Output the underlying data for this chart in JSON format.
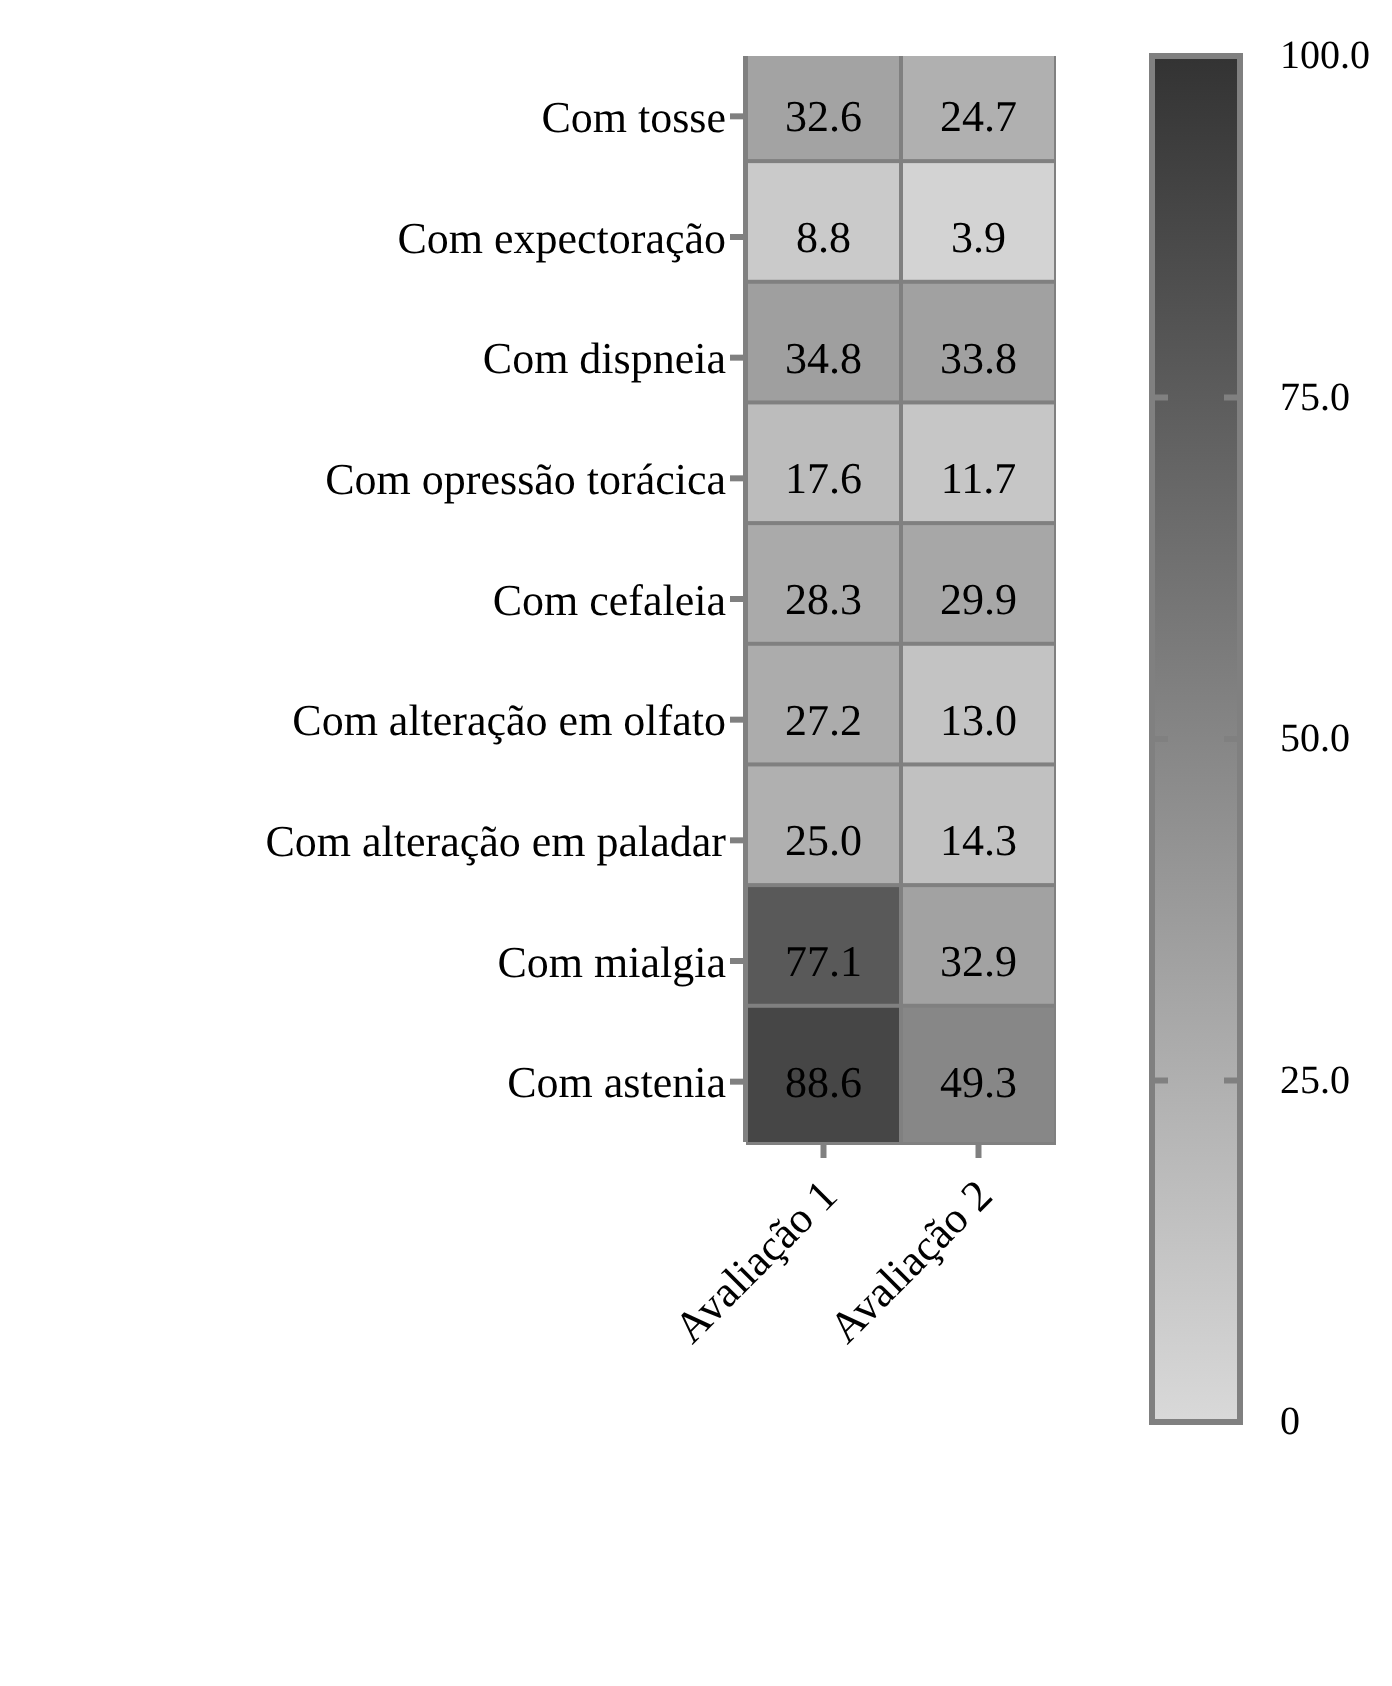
{
  "chart_data": {
    "type": "heatmap",
    "categories": [
      "Avaliação 1",
      "Avaliação 2"
    ],
    "y_categories": [
      "Com tosse",
      "Com expectoração",
      "Com dispneia",
      "Com opressão torácica",
      "Com cefaleia",
      "Com alteração em olfato",
      "Com alteração em paladar",
      "Com mialgia",
      "Com astenia"
    ],
    "cells": [
      [
        32.6,
        24.7
      ],
      [
        8.8,
        3.9
      ],
      [
        34.8,
        33.8
      ],
      [
        17.6,
        11.7
      ],
      [
        28.3,
        29.9
      ],
      [
        27.2,
        13.0
      ],
      [
        25.0,
        14.3
      ],
      [
        77.1,
        32.9
      ],
      [
        88.6,
        49.3
      ]
    ],
    "cell_labels": [
      [
        "32.6",
        "24.7"
      ],
      [
        "8.8",
        "3.9"
      ],
      [
        "34.8",
        "33.8"
      ],
      [
        "17.6",
        "11.7"
      ],
      [
        "28.3",
        "29.9"
      ],
      [
        "27.2",
        "13.0"
      ],
      [
        "25.0",
        "14.3"
      ],
      [
        "77.1",
        "32.9"
      ],
      [
        "88.6",
        "49.3"
      ]
    ],
    "data_labels": true,
    "colors": [
      "#d9d9d9",
      "#333333"
    ],
    "clim": [
      0,
      100
    ],
    "cticks": [
      {
        "value": 0,
        "label": "0"
      },
      {
        "value": 25,
        "label": "25.0"
      },
      {
        "value": 50,
        "label": "50.0"
      },
      {
        "value": 75,
        "label": "75.0"
      },
      {
        "value": 100,
        "label": "100.0"
      }
    ]
  }
}
